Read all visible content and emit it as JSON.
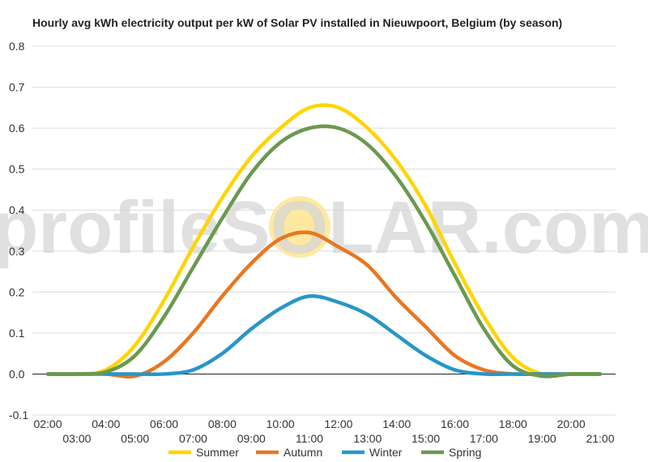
{
  "chart_data": {
    "type": "line",
    "title": "Hourly avg kWh electricity output per kW of Solar PV installed in Nieuwpoort, Belgium (by season)",
    "x": [
      "02:00",
      "03:00",
      "04:00",
      "05:00",
      "06:00",
      "07:00",
      "08:00",
      "09:00",
      "10:00",
      "11:00",
      "12:00",
      "13:00",
      "14:00",
      "15:00",
      "16:00",
      "17:00",
      "18:00",
      "19:00",
      "20:00",
      "21:00"
    ],
    "ylim": [
      -0.1,
      0.8
    ],
    "yticks": [
      "0.8",
      "0.7",
      "0.6",
      "0.5",
      "0.4",
      "0.3",
      "0.2",
      "0.1",
      "0.0",
      "-0.1"
    ],
    "ytick_values": [
      0.8,
      0.7,
      0.6,
      0.5,
      0.4,
      0.3,
      0.2,
      0.1,
      0.0,
      -0.1
    ],
    "grid": true,
    "legend_position": "bottom",
    "series": [
      {
        "name": "Summer",
        "color": "#FFD400",
        "values": [
          0,
          0,
          0.01,
          0.07,
          0.18,
          0.31,
          0.43,
          0.53,
          0.6,
          0.65,
          0.65,
          0.6,
          0.52,
          0.41,
          0.27,
          0.14,
          0.04,
          0.0,
          0,
          0
        ]
      },
      {
        "name": "Autumn",
        "color": "#E87722",
        "values": [
          0,
          0,
          0,
          -0.005,
          0.03,
          0.1,
          0.19,
          0.27,
          0.33,
          0.345,
          0.31,
          0.265,
          0.185,
          0.115,
          0.045,
          0.01,
          0,
          0,
          0,
          0
        ]
      },
      {
        "name": "Winter",
        "color": "#2796C8",
        "values": [
          0,
          0,
          0,
          0,
          0,
          0.01,
          0.05,
          0.11,
          0.16,
          0.19,
          0.175,
          0.145,
          0.095,
          0.045,
          0.01,
          0,
          0,
          0,
          0,
          0
        ]
      },
      {
        "name": "Spring",
        "color": "#6A994E",
        "values": [
          0,
          0,
          0.005,
          0.045,
          0.14,
          0.26,
          0.38,
          0.49,
          0.565,
          0.6,
          0.6,
          0.56,
          0.48,
          0.37,
          0.24,
          0.11,
          0.02,
          -0.005,
          0,
          0
        ]
      }
    ]
  },
  "watermark": {
    "text": "profileSOLAR.com",
    "sun_color": "#FFE9A0"
  }
}
